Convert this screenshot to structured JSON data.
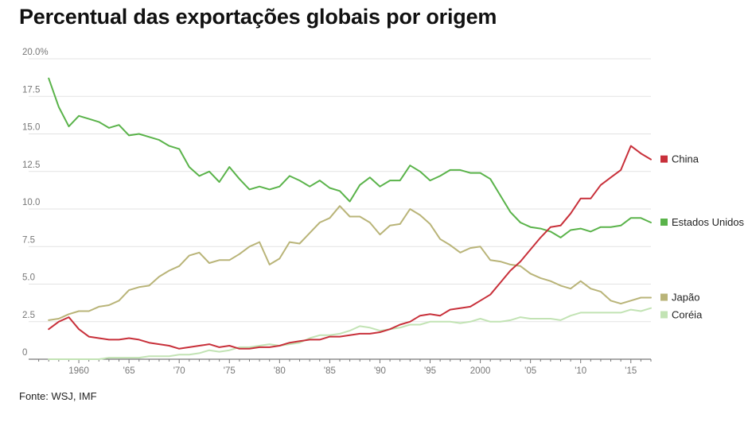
{
  "title": "Percentual das exportações globais por origem",
  "source": "Fonte: WSJ, IMF",
  "chart_data": {
    "type": "line",
    "title": "Percentual das exportações globais por origem",
    "xlabel": "",
    "ylabel": "",
    "xlim": [
      1955,
      2017
    ],
    "ylim": [
      0,
      20
    ],
    "grid": true,
    "legend_placement": "right",
    "y_ticks": [
      {
        "value": 0,
        "label": "0"
      },
      {
        "value": 2.5,
        "label": "2.5"
      },
      {
        "value": 5,
        "label": "5.0"
      },
      {
        "value": 7.5,
        "label": "7.5"
      },
      {
        "value": 10,
        "label": "10.0"
      },
      {
        "value": 12.5,
        "label": "12.5"
      },
      {
        "value": 15,
        "label": "15.0"
      },
      {
        "value": 17.5,
        "label": "17.5"
      },
      {
        "value": 20,
        "label": "20.0%"
      }
    ],
    "x_ticks": [
      {
        "value": 1960,
        "label": "1960"
      },
      {
        "value": 1965,
        "label": "'65"
      },
      {
        "value": 1970,
        "label": "'70"
      },
      {
        "value": 1975,
        "label": "'75"
      },
      {
        "value": 1980,
        "label": "'80"
      },
      {
        "value": 1985,
        "label": "'85"
      },
      {
        "value": 1990,
        "label": "'90"
      },
      {
        "value": 1995,
        "label": "'95"
      },
      {
        "value": 2000,
        "label": "2000"
      },
      {
        "value": 2005,
        "label": "'05"
      },
      {
        "value": 2010,
        "label": "'10"
      },
      {
        "value": 2015,
        "label": "'15"
      }
    ],
    "x": [
      1957,
      1958,
      1959,
      1960,
      1961,
      1962,
      1963,
      1964,
      1965,
      1966,
      1967,
      1968,
      1969,
      1970,
      1971,
      1972,
      1973,
      1974,
      1975,
      1976,
      1977,
      1978,
      1979,
      1980,
      1981,
      1982,
      1983,
      1984,
      1985,
      1986,
      1987,
      1988,
      1989,
      1990,
      1991,
      1992,
      1993,
      1994,
      1995,
      1996,
      1997,
      1998,
      1999,
      2000,
      2001,
      2002,
      2003,
      2004,
      2005,
      2006,
      2007,
      2008,
      2009,
      2010,
      2011,
      2012,
      2013,
      2014,
      2015,
      2016,
      2017
    ],
    "series": [
      {
        "name": "China",
        "color": "#c8303a",
        "values": [
          2.0,
          2.5,
          2.8,
          2.0,
          1.5,
          1.4,
          1.3,
          1.3,
          1.4,
          1.3,
          1.1,
          1.0,
          0.9,
          0.7,
          0.8,
          0.9,
          1.0,
          0.8,
          0.9,
          0.7,
          0.7,
          0.8,
          0.8,
          0.9,
          1.1,
          1.2,
          1.3,
          1.3,
          1.5,
          1.5,
          1.6,
          1.7,
          1.7,
          1.8,
          2.0,
          2.3,
          2.5,
          2.9,
          3.0,
          2.9,
          3.3,
          3.4,
          3.5,
          3.9,
          4.3,
          5.1,
          5.9,
          6.5,
          7.3,
          8.1,
          8.8,
          8.9,
          9.7,
          10.7,
          10.7,
          11.6,
          12.1,
          12.6,
          14.2,
          13.7,
          13.3
        ]
      },
      {
        "name": "Estados Unidos",
        "color": "#5ab34a",
        "values": [
          18.7,
          16.8,
          15.5,
          16.2,
          16.0,
          15.8,
          15.4,
          15.6,
          14.9,
          15.0,
          14.8,
          14.6,
          14.2,
          14.0,
          12.8,
          12.2,
          12.5,
          11.8,
          12.8,
          12.0,
          11.3,
          11.5,
          11.3,
          11.5,
          12.2,
          11.9,
          11.5,
          11.9,
          11.4,
          11.2,
          10.5,
          11.6,
          12.1,
          11.5,
          11.9,
          11.9,
          12.9,
          12.5,
          11.9,
          12.2,
          12.6,
          12.6,
          12.4,
          12.4,
          12.0,
          10.9,
          9.8,
          9.1,
          8.8,
          8.7,
          8.5,
          8.1,
          8.6,
          8.7,
          8.5,
          8.8,
          8.8,
          8.9,
          9.4,
          9.4,
          9.1
        ]
      },
      {
        "name": "Japão",
        "color": "#b9b478",
        "values": [
          2.6,
          2.7,
          3.0,
          3.2,
          3.2,
          3.5,
          3.6,
          3.9,
          4.6,
          4.8,
          4.9,
          5.5,
          5.9,
          6.2,
          6.9,
          7.1,
          6.4,
          6.6,
          6.6,
          7.0,
          7.5,
          7.8,
          6.3,
          6.7,
          7.8,
          7.7,
          8.4,
          9.1,
          9.4,
          10.2,
          9.5,
          9.5,
          9.1,
          8.3,
          8.9,
          9.0,
          10.0,
          9.6,
          9.0,
          8.0,
          7.6,
          7.1,
          7.4,
          7.5,
          6.6,
          6.5,
          6.3,
          6.2,
          5.7,
          5.4,
          5.2,
          4.9,
          4.7,
          5.2,
          4.7,
          4.5,
          3.9,
          3.7,
          3.9,
          4.1,
          4.1
        ]
      },
      {
        "name": "Coréia",
        "color": "#c2e3b4",
        "values": [
          0.0,
          0.0,
          0.0,
          0.0,
          0.0,
          0.0,
          0.1,
          0.1,
          0.1,
          0.1,
          0.2,
          0.2,
          0.2,
          0.3,
          0.3,
          0.4,
          0.6,
          0.5,
          0.6,
          0.8,
          0.8,
          0.9,
          1.0,
          0.9,
          1.0,
          1.1,
          1.4,
          1.6,
          1.6,
          1.7,
          1.9,
          2.2,
          2.1,
          1.9,
          2.0,
          2.1,
          2.3,
          2.3,
          2.5,
          2.5,
          2.5,
          2.4,
          2.5,
          2.7,
          2.5,
          2.5,
          2.6,
          2.8,
          2.7,
          2.7,
          2.7,
          2.6,
          2.9,
          3.1,
          3.1,
          3.1,
          3.1,
          3.1,
          3.3,
          3.2,
          3.4
        ]
      }
    ]
  }
}
